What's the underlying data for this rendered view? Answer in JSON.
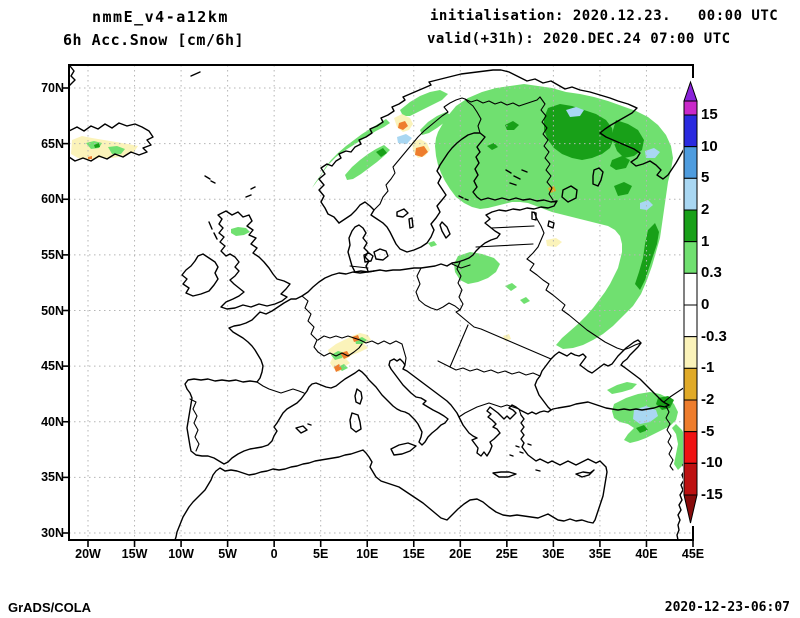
{
  "header": {
    "model": "nmmE_v4-a12km",
    "field": "6h Acc.Snow [cm/6h]",
    "initialisation": "initialisation: 2020.12.23.   00:00 UTC",
    "valid": "valid(+31h): 2020.DEC.24 07:00 UTC"
  },
  "axes": {
    "lat": [
      "70N",
      "65N",
      "60N",
      "55N",
      "50N",
      "45N",
      "40N",
      "35N",
      "30N"
    ],
    "lon": [
      "20W",
      "15W",
      "10W",
      "5W",
      "0",
      "5E",
      "10E",
      "15E",
      "20E",
      "25E",
      "30E",
      "35E",
      "40E",
      "45E"
    ]
  },
  "colorbar": {
    "labels": [
      "15",
      "10",
      "5",
      "2",
      "1",
      "0.3",
      "0",
      "-0.3",
      "-1",
      "-2",
      "-5",
      "-10",
      "-15"
    ],
    "segment_colors": [
      "#2A2ADF",
      "#4E9CDE",
      "#A9D7F2",
      "#18A018",
      "#70E070",
      "#FFFFFF",
      "#FFFFFF",
      "#FBF3BA",
      "#E0AA28",
      "#EE7D2D",
      "#EF1212",
      "#BD1111"
    ],
    "above_top_triangle": "#8A23D9",
    "above_top_band": "#C928C9",
    "below_bottom_triangle": "#870B0B"
  },
  "palette": {
    "snow_light": "#70E070",
    "snow_dark": "#18A018",
    "snow_blue": "#A9D7F2",
    "melt_orange": "#EE7D2D",
    "melt_cream": "#FBF3BA",
    "melt_gold": "#E0AA28"
  },
  "footer": {
    "left": "GrADS/COLA",
    "right": "2020-12-23-06:07"
  }
}
